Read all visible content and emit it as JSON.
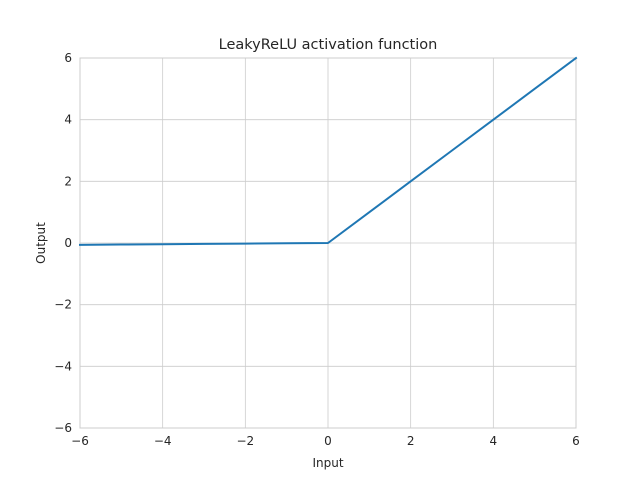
{
  "chart_data": {
    "type": "line",
    "title": "LeakyReLU activation function",
    "xlabel": "Input",
    "ylabel": "Output",
    "xlim": [
      -6,
      6
    ],
    "ylim": [
      -6,
      6
    ],
    "xticks": [
      -6,
      -4,
      -2,
      0,
      2,
      4,
      6
    ],
    "yticks": [
      -6,
      -4,
      -2,
      0,
      2,
      4,
      6
    ],
    "grid": true,
    "series": [
      {
        "color": "#1f77b4",
        "x": [
          -6,
          -5,
          -4,
          -3,
          -2,
          -1,
          0,
          1,
          2,
          3,
          4,
          5,
          6
        ],
        "y": [
          -0.06,
          -0.05,
          -0.04,
          -0.03,
          -0.02,
          -0.01,
          0,
          1,
          2,
          3,
          4,
          5,
          6
        ]
      }
    ]
  }
}
